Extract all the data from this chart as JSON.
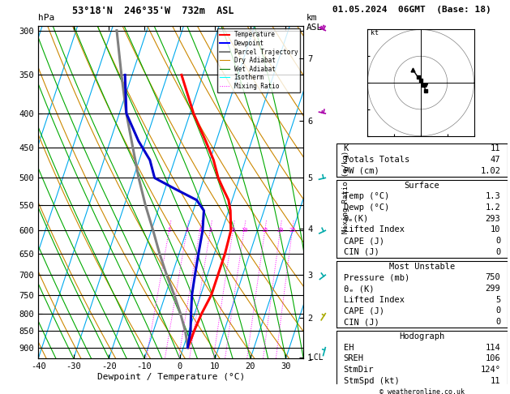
{
  "title_left": "53°18'N  246°35'W  732m  ASL",
  "title_right": "01.05.2024  06GMT  (Base: 18)",
  "xlabel": "Dewpoint / Temperature (°C)",
  "ylabel_left": "hPa",
  "pressure_ticks": [
    300,
    350,
    400,
    450,
    500,
    550,
    600,
    650,
    700,
    750,
    800,
    850,
    900
  ],
  "temp_min": -40,
  "temp_max": 35,
  "temp_ticks": [
    -40,
    -30,
    -20,
    -10,
    0,
    10,
    20,
    30
  ],
  "pmin": 295,
  "pmax": 935,
  "skew": 1.0,
  "km_asl_ticks": [
    1,
    2,
    3,
    4,
    5,
    6,
    7
  ],
  "km_asl_pressures": [
    933,
    812,
    700,
    596,
    500,
    410,
    330
  ],
  "lcl_label_pressure": 933,
  "mixing_ratio_values": [
    2,
    3,
    4,
    5,
    8,
    10,
    15,
    20,
    25
  ],
  "mixing_ratio_label_p": 600,
  "temperature_profile_T": [
    1.3,
    1.5,
    2.0,
    3.0,
    3.0,
    3.0,
    2.5,
    0.5,
    -1.0,
    -3.5,
    -6.0,
    -9.0,
    -13.0,
    -19.0,
    -26.0
  ],
  "temperature_profile_P": [
    900,
    850,
    800,
    750,
    700,
    650,
    600,
    560,
    540,
    520,
    500,
    470,
    440,
    400,
    350
  ],
  "dewpoint_profile_T": [
    1.2,
    0.5,
    -1.0,
    -2.5,
    -3.5,
    -4.5,
    -5.5,
    -7.0,
    -10.0,
    -17.0,
    -24.0,
    -27.0,
    -32.0,
    -38.0,
    -42.0
  ],
  "dewpoint_profile_P": [
    900,
    850,
    800,
    750,
    700,
    650,
    600,
    560,
    540,
    520,
    500,
    470,
    440,
    400,
    350
  ],
  "parcel_T": [
    1.3,
    -1.0,
    -4.0,
    -7.5,
    -11.5,
    -15.5,
    -19.5,
    -24.0,
    -28.5,
    -33.0,
    -38.0,
    -43.0,
    -48.5
  ],
  "parcel_P": [
    900,
    850,
    800,
    750,
    700,
    650,
    600,
    550,
    500,
    450,
    400,
    350,
    300
  ],
  "color_temp": "#ff0000",
  "color_dewp": "#0000cc",
  "color_parcel": "#808080",
  "color_dry_adiabat": "#cc8800",
  "color_wet_adiabat": "#00aa00",
  "color_isotherm": "#00aaee",
  "color_mixing_ratio": "#ff00ff",
  "lw_main": 2.2,
  "lw_bg": 0.8,
  "Rd_cp": 0.2857,
  "stats_K": 11,
  "stats_TT": 47,
  "stats_PW": "1.02",
  "surf_temp": "1.3",
  "surf_dewp": "1.2",
  "surf_theta": "293",
  "surf_li": "10",
  "surf_cape": "0",
  "surf_cin": "0",
  "mu_pres": "750",
  "mu_theta": "299",
  "mu_li": "5",
  "mu_cape": "0",
  "mu_cin": "0",
  "hodo_eh": "114",
  "hodo_sreh": "106",
  "hodo_stmdir": "124°",
  "hodo_stmspd": "11",
  "wind_barb_pressures": [
    300,
    400,
    500,
    600,
    700,
    800,
    900
  ],
  "wind_barb_colors": [
    "#aa00aa",
    "#aa00aa",
    "#00aaaa",
    "#00aaaa",
    "#00aaaa",
    "#aaaa00",
    "#00aaaa"
  ],
  "wind_barb_speeds": [
    25,
    15,
    10,
    10,
    10,
    5,
    5
  ],
  "wind_barb_dirs": [
    290,
    280,
    260,
    250,
    240,
    220,
    200
  ]
}
